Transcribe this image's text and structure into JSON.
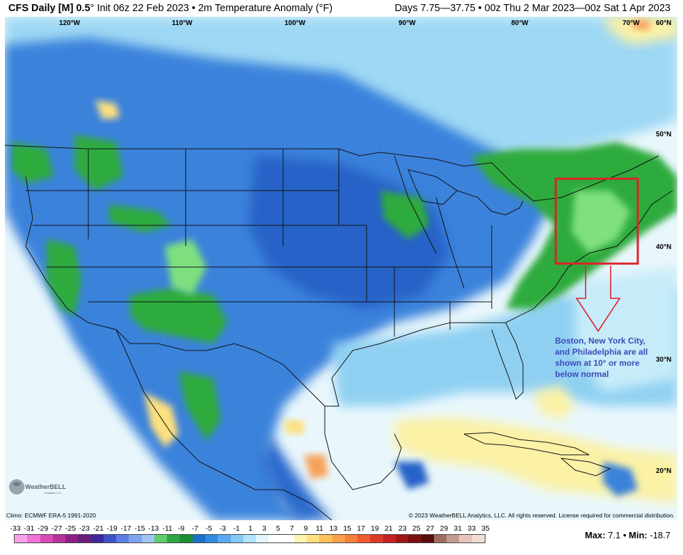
{
  "header": {
    "model": "CFS Daily [M] 0.5",
    "deg": "°",
    "init_text": "Init 06z 22 Feb 2023",
    "bullet": "•",
    "variable": "2m Temperature Anomaly (°F)",
    "range_text": "Days 7.75—37.75 • 00z Thu 2 Mar 2023—00z Sat 1 Apr 2023"
  },
  "axes": {
    "lon_labels": [
      "120°W",
      "110°W",
      "100°W",
      "90°W",
      "80°W",
      "70°W"
    ],
    "lat_labels": [
      "60°N",
      "50°N",
      "40°N",
      "30°N",
      "20°N"
    ]
  },
  "annotation": {
    "text": "Boston, New York City, and Philadelphia are all shown at 10° or more below normal",
    "box_color": "#e0202a",
    "text_color": "#3d4ab8"
  },
  "footer": {
    "climo": "Climo: ECMWF ERA-5 1991-2020",
    "copyright": "© 2023 WeatherBELL Analytics, LLC. All rights reserved. License required for commercial distribution."
  },
  "logo": {
    "text": "WeatherBELL",
    "tagline": "Analytics LLC"
  },
  "legend": {
    "ticks": [
      "-33",
      "-31",
      "-29",
      "-27",
      "-25",
      "-23",
      "-21",
      "-19",
      "-17",
      "-15",
      "-13",
      "-11",
      "-9",
      "-7",
      "-5",
      "-3",
      "-1",
      "1",
      "3",
      "5",
      "7",
      "9",
      "11",
      "13",
      "15",
      "17",
      "19",
      "21",
      "23",
      "25",
      "27",
      "29",
      "31",
      "33",
      "35"
    ],
    "colors": [
      "#f7a1ea",
      "#ee74d8",
      "#d84bb9",
      "#b8329c",
      "#8f1f83",
      "#6a1f7f",
      "#3d2a9a",
      "#3e52c8",
      "#5a7ee2",
      "#7fa5f0",
      "#a1c6f5",
      "#5fcf6b",
      "#2fa843",
      "#1e8c33",
      "#1a6fcc",
      "#2f8ae0",
      "#5aa8ef",
      "#87c9f5",
      "#b3e3fa",
      "#e3f5fd",
      "#ffffff",
      "#ffffff",
      "#fff5b0",
      "#fde080",
      "#fdc05a",
      "#fba04a",
      "#f7803b",
      "#ee5b2f",
      "#dc3a29",
      "#c62020",
      "#a11414",
      "#7a0f0f",
      "#5a0b0b",
      "#9e6b60",
      "#c49a90",
      "#e6c4bc",
      "#f2dcd6"
    ],
    "max_label": "Max:",
    "max_value": "7.1",
    "bullet": "•",
    "min_label": "Min:",
    "min_value": "-18.7"
  },
  "colors": {
    "ocean_light": "#d4f0fb",
    "cold_blue": "#2f75d6",
    "pale_blue": "#8fd0f2",
    "green_anom": "#2eab3c",
    "yellow_warm": "#fbf2a6",
    "orange_warm": "#f6a25a"
  }
}
